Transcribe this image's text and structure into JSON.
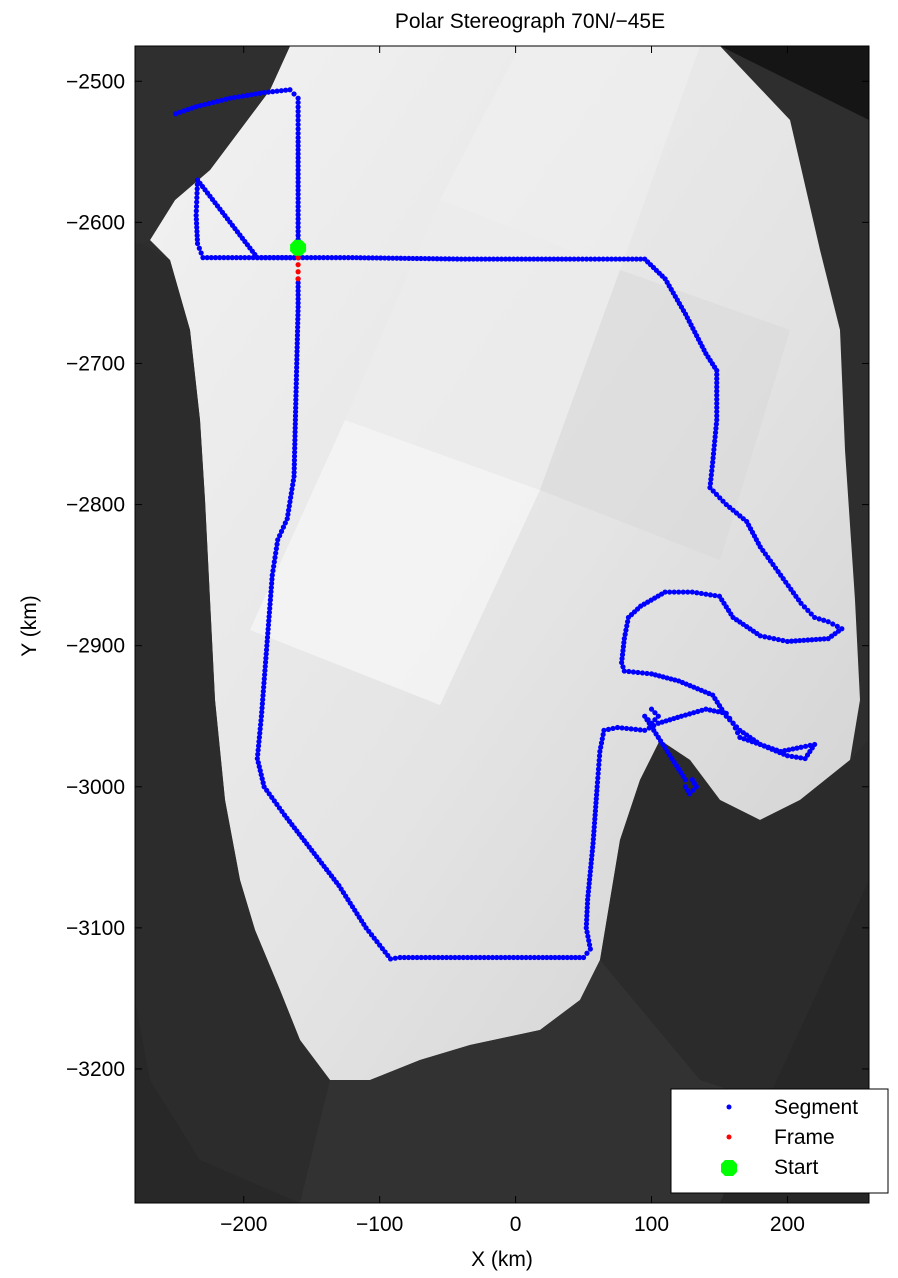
{
  "chart_data": {
    "type": "scatter",
    "title": "Polar Stereograph 70N/−45E",
    "xlabel": "X (km)",
    "ylabel": "Y (km)",
    "xlim": [
      -280,
      260
    ],
    "ylim": [
      -3295,
      -2475
    ],
    "x_ticks": [
      -200,
      -100,
      0,
      100,
      200
    ],
    "y_ticks": [
      -2500,
      -2600,
      -2700,
      -2800,
      -2900,
      -3000,
      -3100,
      -3200
    ],
    "x_tick_labels": [
      "−200",
      "−100",
      "0",
      "100",
      "200"
    ],
    "y_tick_labels": [
      "−2500",
      "−2600",
      "−2700",
      "−2800",
      "−2900",
      "−3000",
      "−3100",
      "−3200"
    ],
    "grid": false,
    "legend_position": "bottom-right",
    "background": "satellite imagery (grayscale) of Greenland coast",
    "series": [
      {
        "name": "Segment",
        "marker": "dot",
        "color": "#0000ff",
        "points": [
          [
            -250,
            -2523
          ],
          [
            -235,
            -2518
          ],
          [
            -210,
            -2512
          ],
          [
            -185,
            -2508
          ],
          [
            -166,
            -2506
          ],
          [
            -160,
            -2512
          ],
          [
            -160,
            -2540
          ],
          [
            -160,
            -2580
          ],
          [
            -160,
            -2618
          ],
          [
            -160,
            -2625
          ],
          [
            -190,
            -2625
          ],
          [
            -230,
            -2625
          ],
          [
            -234,
            -2615
          ],
          [
            -235,
            -2595
          ],
          [
            -234,
            -2570
          ],
          [
            -190,
            -2625
          ],
          [
            -120,
            -2625
          ],
          [
            -40,
            -2626
          ],
          [
            40,
            -2626
          ],
          [
            95,
            -2626
          ],
          [
            110,
            -2640
          ],
          [
            125,
            -2665
          ],
          [
            140,
            -2693
          ],
          [
            148,
            -2705
          ],
          [
            148,
            -2740
          ],
          [
            145,
            -2770
          ],
          [
            143,
            -2788
          ],
          [
            155,
            -2800
          ],
          [
            170,
            -2812
          ],
          [
            180,
            -2830
          ],
          [
            195,
            -2850
          ],
          [
            210,
            -2870
          ],
          [
            220,
            -2880
          ],
          [
            230,
            -2883
          ],
          [
            240,
            -2888
          ],
          [
            230,
            -2895
          ],
          [
            200,
            -2897
          ],
          [
            180,
            -2893
          ],
          [
            160,
            -2880
          ],
          [
            150,
            -2865
          ],
          [
            130,
            -2862
          ],
          [
            110,
            -2862
          ],
          [
            92,
            -2872
          ],
          [
            83,
            -2880
          ],
          [
            80,
            -2895
          ],
          [
            78,
            -2912
          ],
          [
            80,
            -2918
          ],
          [
            100,
            -2920
          ],
          [
            120,
            -2925
          ],
          [
            145,
            -2935
          ],
          [
            155,
            -2950
          ],
          [
            165,
            -2960
          ],
          [
            180,
            -2970
          ],
          [
            195,
            -2975
          ],
          [
            210,
            -2972
          ],
          [
            220,
            -2970
          ],
          [
            213,
            -2980
          ],
          [
            200,
            -2978
          ],
          [
            180,
            -2970
          ],
          [
            165,
            -2965
          ],
          [
            160,
            -2955
          ],
          [
            155,
            -2948
          ],
          [
            140,
            -2945
          ],
          [
            122,
            -2950
          ],
          [
            105,
            -2955
          ],
          [
            95,
            -2960
          ],
          [
            75,
            -2958
          ],
          [
            65,
            -2960
          ],
          [
            62,
            -2975
          ],
          [
            60,
            -3000
          ],
          [
            57,
            -3040
          ],
          [
            53,
            -3080
          ],
          [
            52,
            -3100
          ],
          [
            55,
            -3115
          ],
          [
            50,
            -3121
          ],
          [
            20,
            -3121
          ],
          [
            -20,
            -3121
          ],
          [
            -60,
            -3121
          ],
          [
            -85,
            -3121
          ],
          [
            -92,
            -3122
          ],
          [
            -110,
            -3100
          ],
          [
            -130,
            -3070
          ],
          [
            -150,
            -3045
          ],
          [
            -170,
            -3020
          ],
          [
            -185,
            -3000
          ],
          [
            -190,
            -2980
          ],
          [
            -187,
            -2950
          ],
          [
            -183,
            -2900
          ],
          [
            -179,
            -2850
          ],
          [
            -175,
            -2825
          ],
          [
            -168,
            -2810
          ],
          [
            -163,
            -2780
          ],
          [
            -162,
            -2740
          ],
          [
            -161,
            -2700
          ],
          [
            -160,
            -2660
          ],
          [
            -160,
            -2640
          ],
          [
            100,
            -2945
          ],
          [
            105,
            -2950
          ],
          [
            100,
            -2955
          ],
          [
            95,
            -2950
          ],
          [
            125,
            -2995
          ],
          [
            130,
            -2995
          ],
          [
            133,
            -3000
          ],
          [
            128,
            -3005
          ],
          [
            125,
            -3000
          ]
        ]
      },
      {
        "name": "Frame",
        "marker": "dot",
        "color": "#ff0000",
        "points": [
          [
            -160,
            -2620
          ],
          [
            -160,
            -2625
          ],
          [
            -160,
            -2630
          ],
          [
            -160,
            -2635
          ],
          [
            -160,
            -2640
          ]
        ]
      },
      {
        "name": "Start",
        "marker": "octagon",
        "color": "#00ff00",
        "points": [
          [
            -160,
            -2618
          ]
        ]
      }
    ]
  }
}
